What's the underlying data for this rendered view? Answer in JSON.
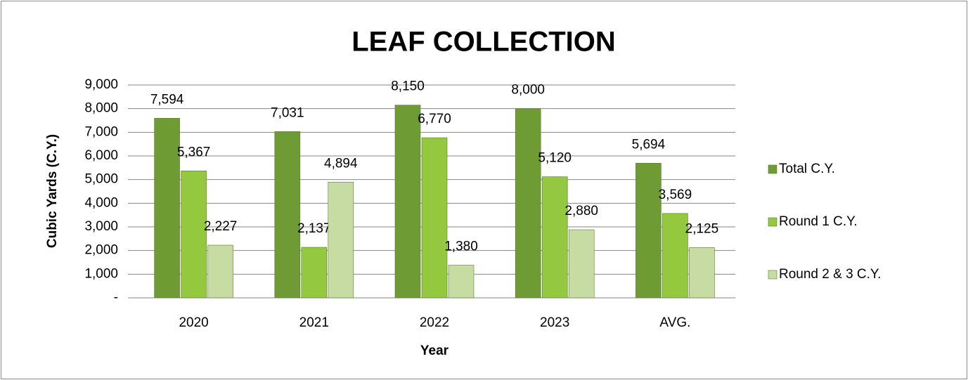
{
  "chart_data": {
    "type": "bar",
    "title": "LEAF COLLECTION",
    "x_label": "Year",
    "y_label": "Cubic Yards (C.Y.)",
    "categories": [
      "2020",
      "2021",
      "2022",
      "2023",
      "AVG."
    ],
    "series": [
      {
        "name": "Total C.Y.",
        "color": "#6f9b34",
        "values": [
          7594,
          7031,
          8150,
          8000,
          5694
        ],
        "value_labels": [
          "7,594",
          "7,031",
          "8,150",
          "8,000",
          "5,694"
        ]
      },
      {
        "name": "Round 1 C.Y.",
        "color": "#93c83f",
        "values": [
          5367,
          2137,
          6770,
          5120,
          3569
        ],
        "value_labels": [
          "5,367",
          "2,137",
          "6,770",
          "5,120",
          "3,569"
        ]
      },
      {
        "name": "Round 2 & 3 C.Y.",
        "color": "#c7dca3",
        "values": [
          2227,
          4894,
          1380,
          2880,
          2125
        ],
        "value_labels": [
          "2,227",
          "4,894",
          "1,380",
          "2,880",
          "2,125"
        ]
      }
    ],
    "ylim": [
      0,
      9000
    ],
    "yticks": [
      {
        "value": 0,
        "label": "-"
      },
      {
        "value": 1000,
        "label": "1,000"
      },
      {
        "value": 2000,
        "label": "2,000"
      },
      {
        "value": 3000,
        "label": "3,000"
      },
      {
        "value": 4000,
        "label": "4,000"
      },
      {
        "value": 5000,
        "label": "5,000"
      },
      {
        "value": 6000,
        "label": "6,000"
      },
      {
        "value": 7000,
        "label": "7,000"
      },
      {
        "value": 8000,
        "label": "8,000"
      },
      {
        "value": 9000,
        "label": "9,000"
      }
    ],
    "grid": true,
    "legend": "right"
  }
}
